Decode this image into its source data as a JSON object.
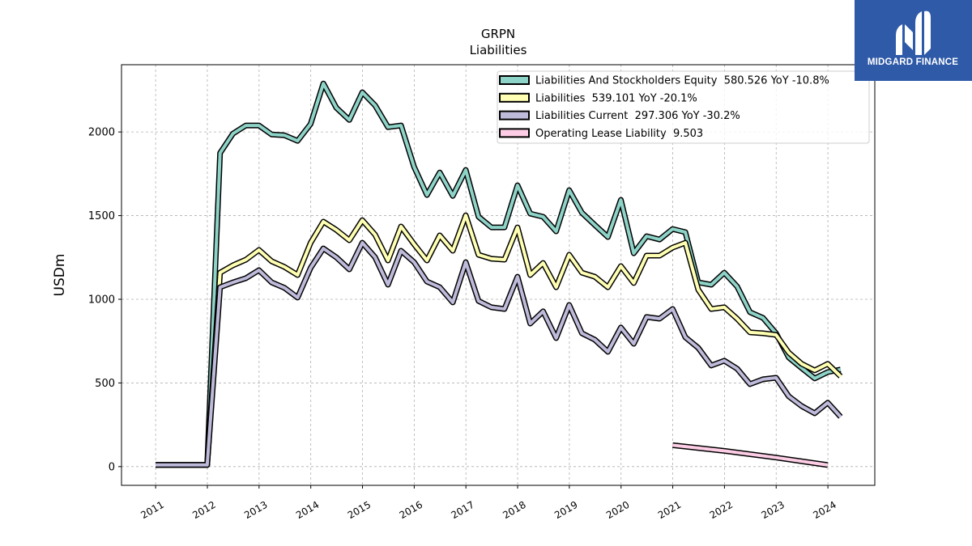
{
  "logo": {
    "text": "MIDGARD FINANCE",
    "background": "#2f5aa8"
  },
  "chart_data": {
    "type": "line",
    "title": "GRPN",
    "subtitle": "Liabilities",
    "ylabel": "USDm",
    "xlim": [
      "2010-05-05",
      "2024-11-28"
    ],
    "ylim": [
      -112,
      2402
    ],
    "x_ticks": [
      "2011",
      "2012",
      "2013",
      "2014",
      "2015",
      "2016",
      "2017",
      "2018",
      "2019",
      "2020",
      "2021",
      "2022",
      "2023",
      "2024"
    ],
    "y_ticks": [
      0,
      500,
      1000,
      1500,
      2000
    ],
    "grid": true,
    "legend_position": "top-right",
    "x": [
      "2010-12-31",
      "2011-12-31",
      "2012-03-31",
      "2012-06-30",
      "2012-09-30",
      "2012-12-31",
      "2013-03-31",
      "2013-06-30",
      "2013-09-30",
      "2013-12-31",
      "2014-03-31",
      "2014-06-30",
      "2014-09-30",
      "2014-12-31",
      "2015-03-31",
      "2015-06-30",
      "2015-09-30",
      "2015-12-31",
      "2016-03-31",
      "2016-06-30",
      "2016-09-30",
      "2016-12-31",
      "2017-03-31",
      "2017-06-30",
      "2017-09-30",
      "2017-12-31",
      "2018-03-31",
      "2018-06-30",
      "2018-09-30",
      "2018-12-31",
      "2019-03-31",
      "2019-06-30",
      "2019-09-30",
      "2019-12-31",
      "2020-03-31",
      "2020-06-30",
      "2020-09-30",
      "2020-12-31",
      "2021-03-31",
      "2021-06-30",
      "2021-09-30",
      "2021-12-31",
      "2022-03-31",
      "2022-06-30",
      "2022-09-30",
      "2022-12-31",
      "2023-03-31",
      "2023-06-30",
      "2023-09-30",
      "2023-12-31",
      "2024-03-31"
    ],
    "series": [
      {
        "name": "Liabilities And Stockholders Equity  580.526 YoY -10.8%",
        "color": "#8dd3c7",
        "y": [
          10,
          10,
          1874,
          1990,
          2039,
          2039,
          1985,
          1980,
          1947,
          2048,
          2290,
          2145,
          2072,
          2237,
          2159,
          2029,
          2039,
          1792,
          1623,
          1758,
          1618,
          1773,
          1493,
          1430,
          1430,
          1681,
          1512,
          1493,
          1406,
          1652,
          1517,
          1444,
          1372,
          1594,
          1275,
          1377,
          1357,
          1420,
          1401,
          1101,
          1087,
          1159,
          1077,
          923,
          889,
          797,
          652,
          589,
          527,
          565,
          580.526
        ]
      },
      {
        "name": "Liabilities  539.101 YoY -20.1%",
        "color": "#ffffb3",
        "y": [
          10,
          10,
          1159,
          1203,
          1237,
          1295,
          1227,
          1193,
          1145,
          1338,
          1464,
          1415,
          1353,
          1473,
          1386,
          1232,
          1435,
          1329,
          1232,
          1382,
          1290,
          1502,
          1266,
          1242,
          1237,
          1430,
          1145,
          1217,
          1072,
          1266,
          1159,
          1135,
          1072,
          1198,
          1097,
          1261,
          1261,
          1309,
          1338,
          1058,
          942,
          952,
          884,
          802,
          797,
          787,
          681,
          614,
          575,
          614,
          539.101
        ]
      },
      {
        "name": "Liabilities Current  297.306 YoY -30.2%",
        "color": "#bebada",
        "y": [
          10,
          10,
          1072,
          1101,
          1126,
          1174,
          1101,
          1068,
          1010,
          1188,
          1304,
          1251,
          1179,
          1338,
          1251,
          1087,
          1290,
          1222,
          1106,
          1072,
          981,
          1222,
          990,
          952,
          942,
          1135,
          855,
          928,
          768,
          966,
          797,
          758,
          686,
          831,
          734,
          894,
          884,
          942,
          773,
          710,
          604,
          633,
          585,
          493,
          522,
          531,
          420,
          362,
          319,
          382,
          297.306
        ]
      },
      {
        "name": "Operating Lease Liability  9.503",
        "color": "#fccde5",
        "x": [
          "2020-12-31",
          "2021-12-31",
          "2022-12-31",
          "2023-12-31"
        ],
        "y": [
          128,
          94,
          54,
          9.503
        ]
      }
    ]
  }
}
